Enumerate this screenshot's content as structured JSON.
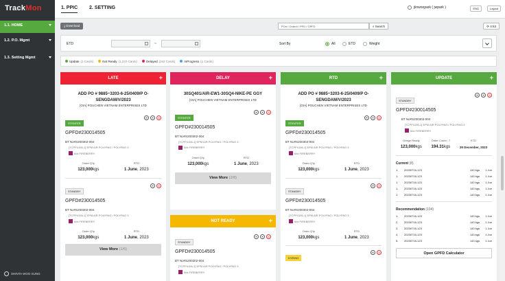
{
  "app": {
    "logo_a": "Track",
    "logo_b": "Mon",
    "footer": "SHINTA WOO SUNG"
  },
  "sidebar": {
    "items": [
      {
        "label": "1.1. HOME"
      },
      {
        "label": "1.2. P.O. Mgmt"
      },
      {
        "label": "1.3. Setting Mgmt"
      }
    ]
  },
  "tabs": [
    {
      "label": "1. PPIC"
    },
    {
      "label": "2. SETTING"
    }
  ],
  "user": {
    "name": "jiinwoopark ( jwpark )",
    "lang": "ENG",
    "logout": "Logout"
  },
  "toolbar": {
    "download": "Download",
    "search_placeholder": "PO# / Order# / PFD / GPFD",
    "search": "Search",
    "timer": "4:53"
  },
  "filter": {
    "etd": "ETD",
    "tilde": "~",
    "sort_by": "Sort By",
    "options": [
      "All",
      "ETD",
      "Weight"
    ],
    "selected": "All"
  },
  "legend": [
    {
      "label": "Update",
      "count": "(1 Cards)",
      "color": "#56a93e"
    },
    {
      "label": "Not Ready",
      "count": "(1,222 Cards)",
      "color": "#f5b800"
    },
    {
      "label": "Delayed",
      "count": "(242 Cards)",
      "color": "#e0245e"
    },
    {
      "label": "InProgress",
      "count": "(1 Cards)",
      "color": "#4aa3df"
    }
  ],
  "columns": {
    "late": {
      "title": "LATE",
      "color": "#ee2233",
      "head_title": "ADD PO # 9885~3203-6-25/0409/P O-SENGDAM/V/2023",
      "head_sub": "[OIA] POUCHEN VIETNAM ENTERPRISES LTD",
      "cards": [
        {
          "tag": "STENTER",
          "gpfd": "GPFD#230014505",
          "bt": "BT No#S200302-004",
          "tc": "[TCPP4156-1] EPM AIR POLYPAG / POLYPAG 3",
          "fabric": "6dx FIREBERRY",
          "qty_label": "Order Q'ty",
          "qty": "123,000",
          "unit": "kgs",
          "rtd_label": "RTD",
          "rtd_day": "1 June",
          "rtd_year": ", 2023"
        },
        {
          "tag": "STANDBY",
          "gpfd": "GPFD#230014505",
          "bt": "BT No#S200302-004",
          "tc": "[TCPP4156-1] EPM AIR POLYPAG / POLYPAG 3",
          "fabric": "6dx FIREBERRY",
          "qty_label": "Order Q'ty",
          "qty": "123,000",
          "unit": "kgs",
          "rtd_label": "RTD",
          "rtd_day": "1 June",
          "rtd_year": ", 2023"
        }
      ],
      "more": "View More",
      "more_count": "(1/6)"
    },
    "delay": {
      "title": "DELAY",
      "color": "#e0245e",
      "head_title": "30SQ401/AIR-EW1-30SQ4-NIKE-PE GGY",
      "head_sub": "[OIA] POUCHEN VIETNAM ENTERPRISES LTD",
      "cards": [
        {
          "tag": "STENTER",
          "gpfd": "GPFD#230014505",
          "bt": "BT No#S200302-004",
          "tc": "[TCPP4156-1] EPM AIR POLYPAG / POLYPAG 3",
          "fabric": "6dx FIREBERRY",
          "qty_label": "Order Q'ty",
          "qty": "123,000",
          "unit": "kgs",
          "rtd_label": "RTD",
          "rtd_day": "1 June",
          "rtd_year": ", 2023"
        }
      ],
      "more": "View More",
      "more_count": "(2/8)"
    },
    "notready": {
      "title": "NOT READY",
      "color": "#f5b800",
      "cards": [
        {
          "tag": "STANDBY",
          "gpfd": "GPFD#230014505",
          "bt": "BT No#S200302-004",
          "tc": "[TCPP4156-1] EPM AIR POLYPAG / POLYPAG 3",
          "fabric": "6dx FIREBERRY"
        }
      ]
    },
    "rtd": {
      "title": "RTD",
      "color": "#56a93e",
      "head_title": "ADD PO # 9885~3203-6-25/0409/P O-SENGDAM/V/2023",
      "head_sub": "[OIA] POUCHEN VIETNAM ENTERPRISES LTD",
      "cards": [
        {
          "tag": "STENTER",
          "gpfd": "GPFD#230014505",
          "bt": "BT No#S200302-004",
          "tc": "[TCPP4156-1] EPM AIR POLYPAG / POLYPAG 3",
          "fabric": "6dx FIREBERRY",
          "qty_label": "Order Q'ty",
          "qty": "123,000",
          "unit": "kgs",
          "rtd_label": "RTD",
          "rtd_day": "1 June",
          "rtd_year": ", 2023"
        },
        {
          "tag": "STANDBY",
          "gpfd": "GPFD#230014505",
          "bt": "BT No#S200302-004",
          "tc": "[TCPP4156-1] EPM AIR POLYPAG / POLYPAG 3",
          "fabric": "6dx FIREBERRY",
          "qty_label": "Order Q'ty",
          "qty": "123,000",
          "unit": "kgs",
          "rtd_label": "RTD",
          "rtd_day": "1 June",
          "rtd_year": ", 2023"
        },
        {
          "tag": "DYEING"
        }
      ]
    },
    "update": {
      "title": "UPDATE",
      "color": "#56a93e",
      "tag": "STANDBY",
      "gpfd": "GPFD#230014505",
      "bt": "BT No#S200302-004",
      "tc": "[TCPP4156-1] EPM AIR POLYPAG / POLYPAG 3",
      "fabric": "6dx FIREBERRY",
      "greige_label": "Greige Ready",
      "greige": "123,000",
      "unit": "kgs",
      "count_label": "Order Count : 7",
      "count": "194.31",
      "etd_label": "ETD",
      "etd": "29 December, 2023",
      "current_label": "Current",
      "current_count": "(8)",
      "current": [
        {
          "n": "1.",
          "code": "20230716-123",
          "kg": "143 kgs",
          "d": "1 Jun"
        },
        {
          "n": "1.",
          "code": "20230716-123",
          "kg": "143 kgs",
          "d": "1 Jun"
        },
        {
          "n": "1.",
          "code": "20230716-123",
          "kg": "143 kgs",
          "d": "1 Jun"
        },
        {
          "n": "1.",
          "code": "20230716-123",
          "kg": "143 kgs",
          "d": "1 Jun"
        },
        {
          "n": "1.",
          "code": "20230716-123",
          "kg": "143 kgs",
          "d": "1 Jun"
        }
      ],
      "rec_label": "Recommendation",
      "rec_count": "(104)",
      "rec": [
        {
          "n": "1.",
          "code": "20230716-123",
          "kg": "143 kgs",
          "d": "1 Jun"
        },
        {
          "n": "2.",
          "code": "20230716-123",
          "kg": "143 kgs",
          "d": "1 Jun"
        },
        {
          "n": "3.",
          "code": "20230716-123",
          "kg": "143 kgs",
          "d": "1 Jun"
        },
        {
          "n": "4.",
          "code": "20230716-123",
          "kg": "143 kgs",
          "d": "1 Jun"
        },
        {
          "n": "5.",
          "code": "20230716-123",
          "kg": "143 kgs",
          "d": "1 Jun"
        }
      ],
      "calc": "Open GPFD Calculator"
    }
  }
}
